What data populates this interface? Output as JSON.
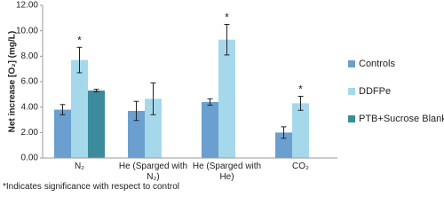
{
  "chart_data": {
    "type": "bar",
    "y_label": "Net increase [O₂] (mg/L)",
    "categories": [
      "N₂",
      "He (Sparged with N₂)",
      "He (Sparged with He)",
      "CO₂"
    ],
    "series": [
      {
        "name": "Controls",
        "color": "#6a9fcf",
        "values": [
          3.8,
          3.7,
          4.4,
          2.0
        ],
        "errors": [
          0.4,
          0.75,
          0.25,
          0.45
        ]
      },
      {
        "name": "DDFPe",
        "color": "#a6d8ec",
        "values": [
          7.7,
          4.65,
          9.3,
          4.3
        ],
        "errors": [
          1.0,
          1.25,
          1.2,
          0.55
        ],
        "annotations": [
          "*",
          null,
          "*",
          "*"
        ]
      },
      {
        "name": "PTB+Sucrose Blank",
        "color": "#3b8b9c",
        "values": [
          5.3,
          null,
          null,
          null
        ],
        "errors": [
          0.1,
          null,
          null,
          null
        ]
      }
    ],
    "ylim": [
      0,
      12
    ],
    "yticks": [
      {
        "value": 0,
        "label": "0.00"
      },
      {
        "value": 2,
        "label": "2.00"
      },
      {
        "value": 4,
        "label": "4.00"
      },
      {
        "value": 6,
        "label": "6.00"
      },
      {
        "value": 8,
        "label": "8.00"
      },
      {
        "value": 10,
        "label": "10.00"
      },
      {
        "value": 12,
        "label": "12.00"
      }
    ],
    "grid": false,
    "legend": "right",
    "footnote": "*Indicates significance with respect to control"
  }
}
